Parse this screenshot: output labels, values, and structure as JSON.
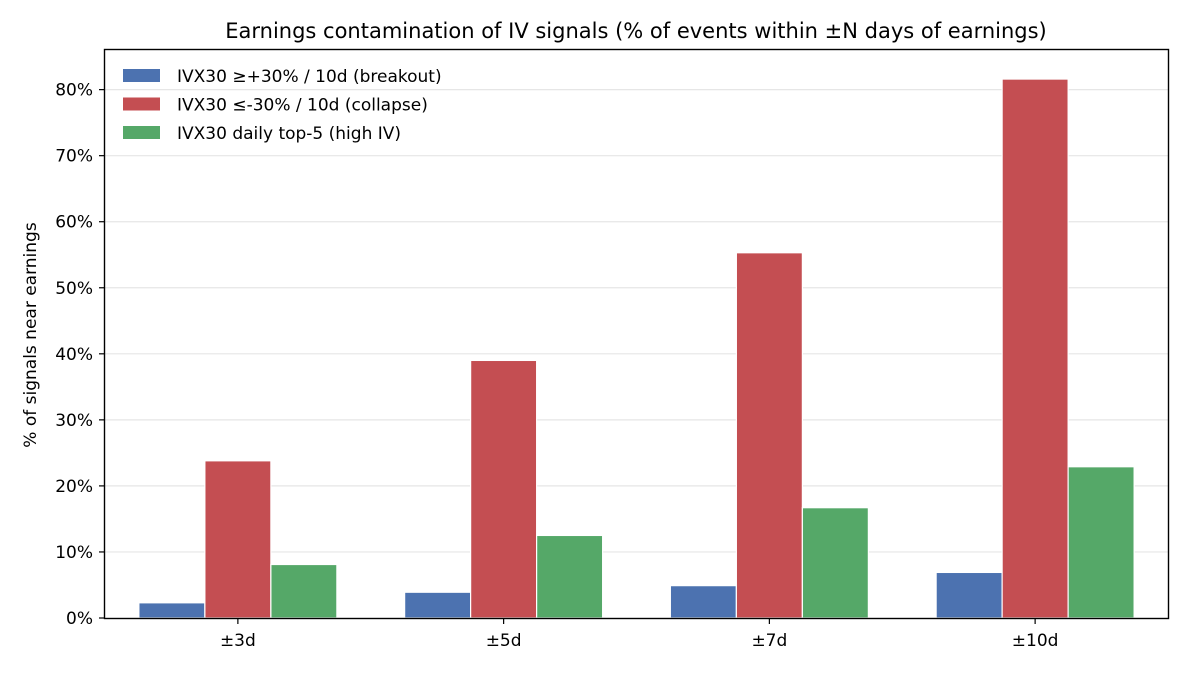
{
  "chart_data": {
    "type": "bar",
    "title": "Earnings contamination of IV signals (% of events within ±N days of earnings)",
    "xlabel": "",
    "ylabel": "% of signals near earnings",
    "categories": [
      "±3d",
      "±5d",
      "±7d",
      "±10d"
    ],
    "series": [
      {
        "name": "IVX30 ≥+30% / 10d (breakout)",
        "color": "#4c72b0",
        "values": [
          2.3,
          3.9,
          4.9,
          6.9
        ]
      },
      {
        "name": "IVX30 ≤-30% / 10d (collapse)",
        "color": "#c44e52",
        "values": [
          23.8,
          39.0,
          55.3,
          81.6
        ]
      },
      {
        "name": "IVX30 daily top-5 (high IV)",
        "color": "#55a868",
        "values": [
          8.1,
          12.5,
          16.7,
          22.9
        ]
      }
    ],
    "ylim": [
      0,
      86
    ],
    "yticks": [
      0,
      10,
      20,
      30,
      40,
      50,
      60,
      70,
      80
    ],
    "ytick_suffix": "%",
    "grid": "horizontal",
    "legend_position": "top-left"
  }
}
